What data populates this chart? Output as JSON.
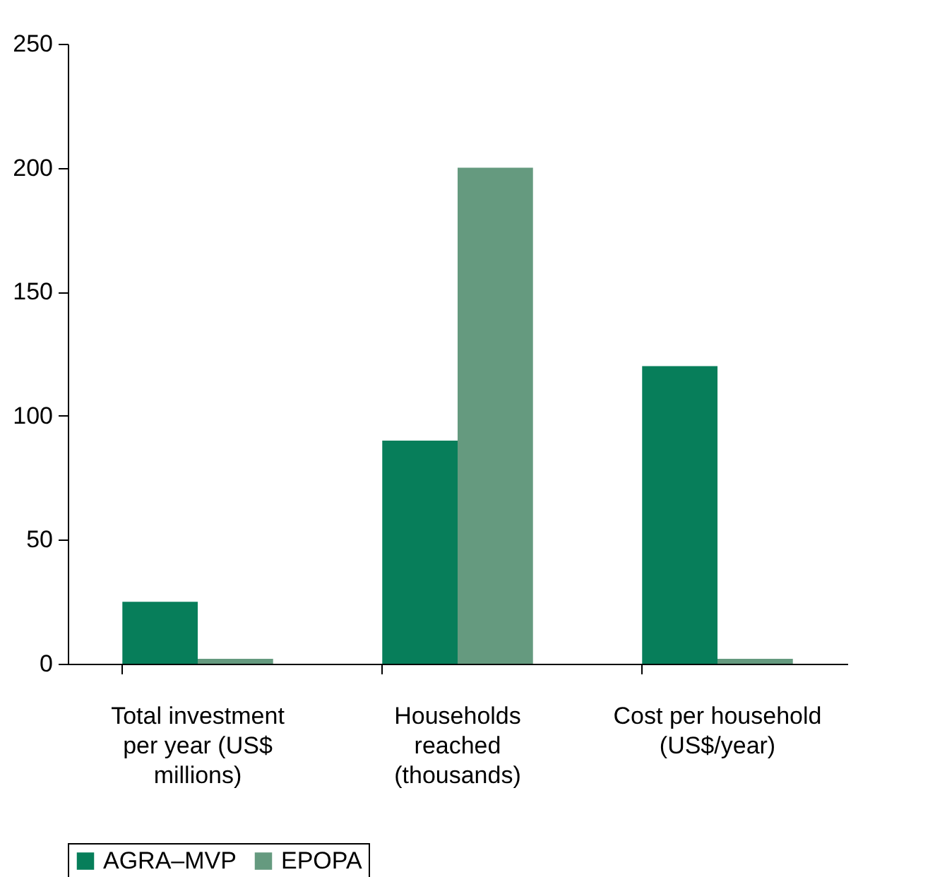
{
  "chart_data": {
    "type": "bar",
    "categories": [
      "Total investment\nper year (US$\nmillions)",
      "Households\nreached\n(thousands)",
      "Cost per household\n(US$/year)"
    ],
    "series": [
      {
        "name": "AGRA–MVP",
        "color": "#077e5a",
        "values": [
          25,
          90,
          120
        ]
      },
      {
        "name": "EPOPA",
        "color": "#659a7f",
        "values": [
          2,
          200,
          2
        ]
      }
    ],
    "ylim": [
      0,
      250
    ],
    "yticks": [
      0,
      50,
      100,
      150,
      200,
      250
    ],
    "grid": false,
    "legend": "bottom"
  }
}
